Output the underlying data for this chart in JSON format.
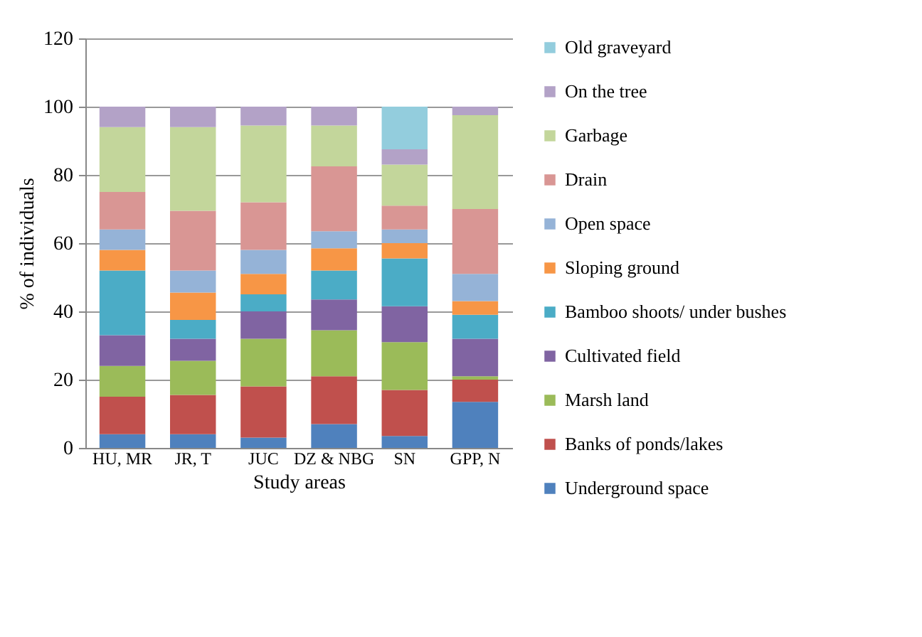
{
  "chart_data": {
    "type": "bar",
    "stacked": true,
    "xlabel": "Study areas",
    "ylabel": "% of individuals",
    "categories": [
      "HU, MR",
      "JR, T",
      "JUC",
      "DZ & NBG",
      "SN",
      "GPP, N"
    ],
    "ylim": [
      0,
      120
    ],
    "yticks": [
      0,
      20,
      40,
      60,
      80,
      100,
      120
    ],
    "grid": "y",
    "legend": "right",
    "series": [
      {
        "name": "Underground space",
        "color": "#4f81bd",
        "values": [
          4,
          4,
          3,
          7,
          3.5,
          13.5
        ]
      },
      {
        "name": "Banks of ponds/lakes",
        "color": "#c0504d",
        "values": [
          11,
          11.5,
          15,
          14,
          13.5,
          6.5
        ]
      },
      {
        "name": "Marsh land",
        "color": "#9bbb59",
        "values": [
          9,
          10,
          14,
          13.5,
          14,
          1
        ]
      },
      {
        "name": "Cultivated field",
        "color": "#8064a2",
        "values": [
          9,
          6.5,
          8,
          9,
          10.5,
          11
        ]
      },
      {
        "name": "Bamboo shoots/ under bushes",
        "color": "#4bacc6",
        "values": [
          19,
          5.5,
          5,
          8.5,
          14,
          7
        ]
      },
      {
        "name": "Sloping  ground",
        "color": "#f79646",
        "values": [
          6,
          8,
          6,
          6.5,
          4.5,
          4
        ]
      },
      {
        "name": "Open space",
        "color": "#95b3d7",
        "values": [
          6,
          6.5,
          7,
          5,
          4,
          8
        ]
      },
      {
        "name": "Drain",
        "color": "#d99694",
        "values": [
          11,
          17.5,
          14,
          19,
          7,
          19
        ]
      },
      {
        "name": "Garbage",
        "color": "#c3d69b",
        "values": [
          19,
          24.5,
          22.5,
          12,
          12,
          27.5
        ]
      },
      {
        "name": "On the tree",
        "color": "#b3a2c7",
        "values": [
          6,
          6,
          5.5,
          5.5,
          4.5,
          2.5
        ]
      },
      {
        "name": "Old graveyard",
        "color": "#93cddd",
        "values": [
          0,
          0,
          0,
          0,
          12.5,
          0
        ]
      }
    ]
  }
}
